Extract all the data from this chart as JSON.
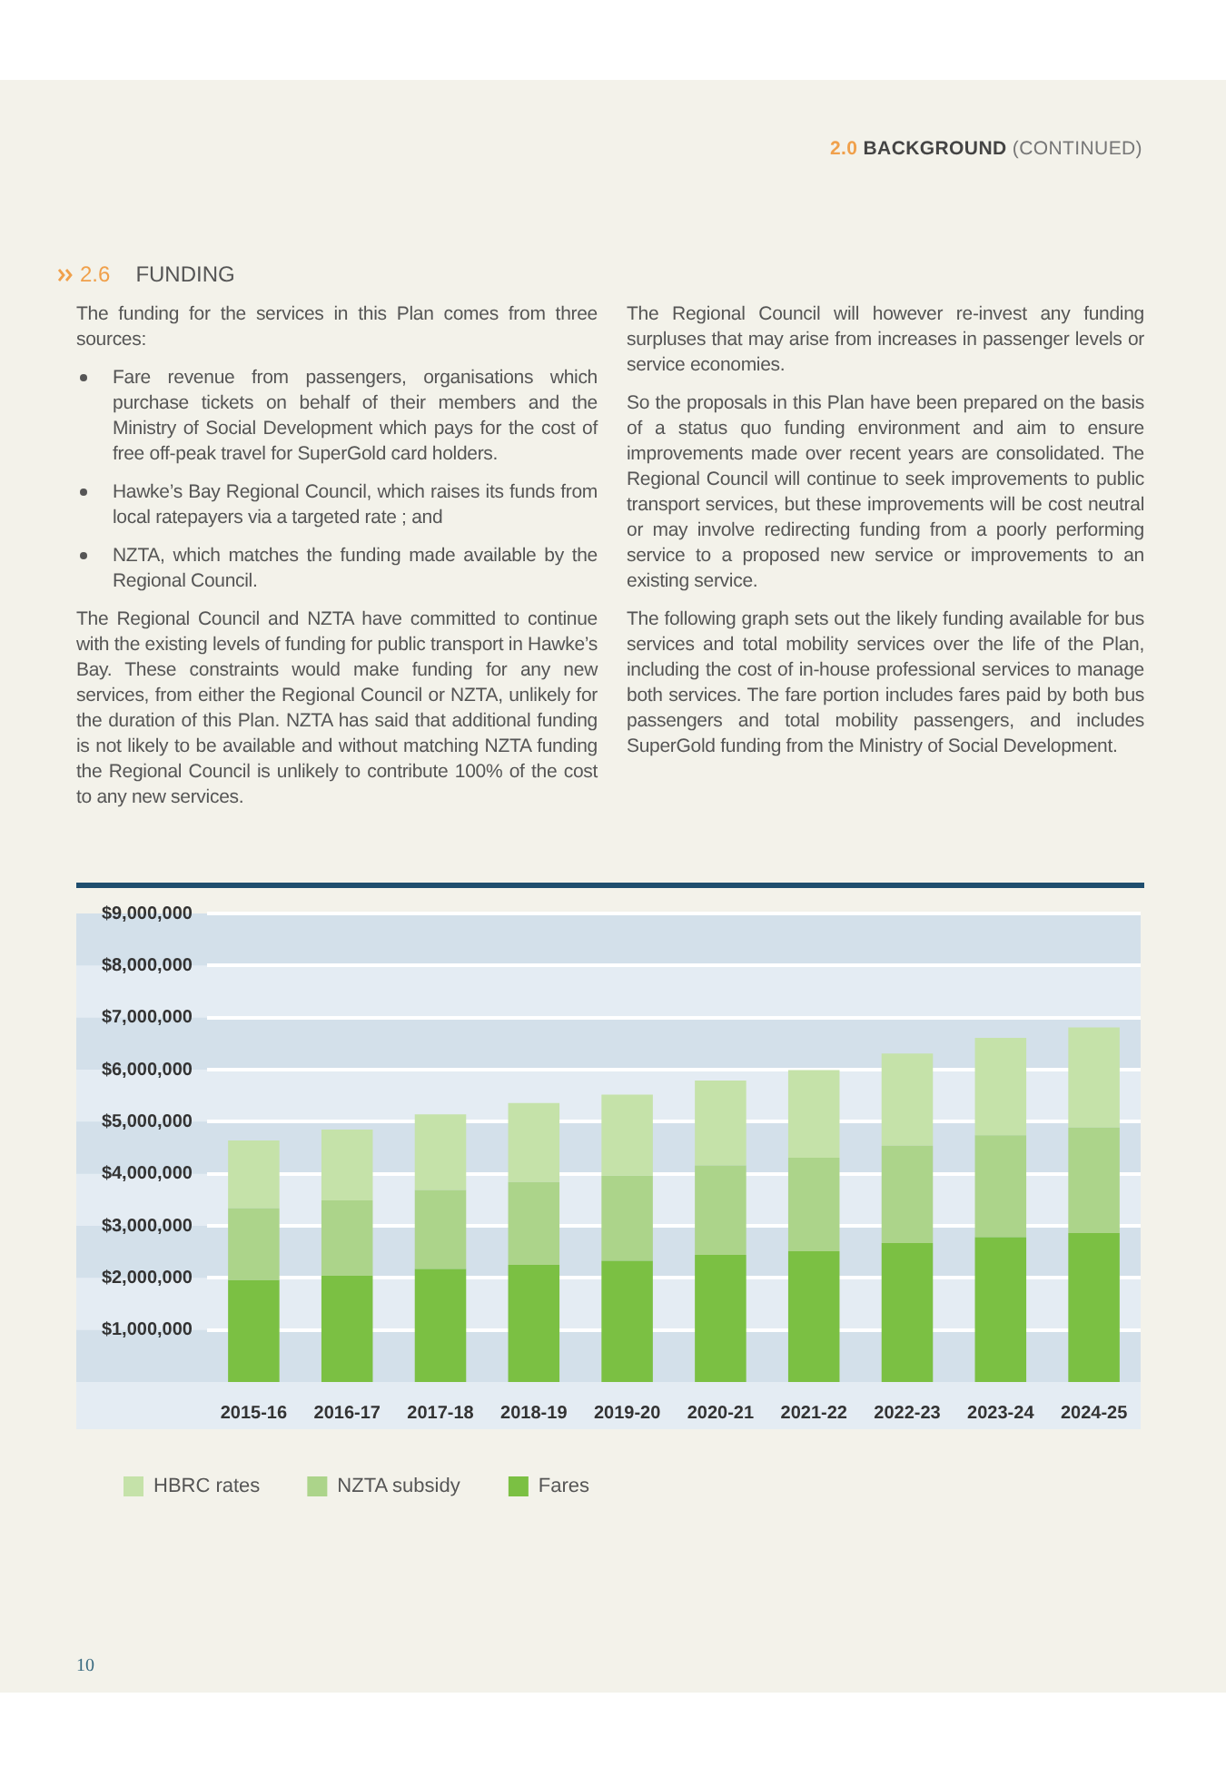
{
  "chart_data": {
    "type": "bar",
    "stacked": true,
    "title": "2.6 FUNDING",
    "categories": [
      "2015-16",
      "2016-17",
      "2017-18",
      "2018-19",
      "2019-20",
      "2020-21",
      "2021-22",
      "2022-23",
      "2023-24",
      "2024-25"
    ],
    "series": [
      {
        "name": "Fares",
        "color": "#7bc043",
        "values": [
          1960000,
          2040000,
          2170000,
          2250000,
          2330000,
          2440000,
          2510000,
          2670000,
          2780000,
          2860000
        ]
      },
      {
        "name": "NZTA subsidy",
        "color": "#acd48a",
        "values": [
          1380000,
          1450000,
          1520000,
          1590000,
          1640000,
          1720000,
          1800000,
          1870000,
          1960000,
          2030000
        ]
      },
      {
        "name": "HBRC rates",
        "color": "#c5e2a9",
        "values": [
          1300000,
          1360000,
          1450000,
          1520000,
          1550000,
          1630000,
          1680000,
          1770000,
          1870000,
          1920000
        ]
      }
    ],
    "ylim": [
      0,
      9000000
    ],
    "yticks": [
      {
        "value": 1000000,
        "label": "$1,000,000"
      },
      {
        "value": 2000000,
        "label": "$2,000,000"
      },
      {
        "value": 3000000,
        "label": "$3,000,000"
      },
      {
        "value": 4000000,
        "label": "$4,000,000"
      },
      {
        "value": 5000000,
        "label": "$5,000,000"
      },
      {
        "value": 6000000,
        "label": "$6,000,000"
      },
      {
        "value": 7000000,
        "label": "$7,000,000"
      },
      {
        "value": 8000000,
        "label": "$8,000,000"
      },
      {
        "value": 9000000,
        "label": "$9,000,000"
      }
    ],
    "grid": "y",
    "legend": "bottom left",
    "annotations": [
      "2.0 BACKGROUND (CONTINUED)",
      "The funding for the services in this Plan comes from three sources:",
      "Fare revenue from passengers, organisations which purchase tickets on behalf of their members and the Ministry of Social Development which pays for the cost of free off-peak travel for SuperGold card holders.",
      "Hawke’s Bay Regional Council, which raises its funds from local ratepayers via a targeted rate ; and",
      "NZTA, which matches the funding made available by the Regional Council.",
      "The Regional Council and NZTA have committed to continue with the existing levels of funding for public transport in Hawke’s Bay. These constraints would make funding for any new services, from either the Regional Council or NZTA, unlikely for the duration of this Plan.  NZTA has said that additional funding is not likely to be available and without matching NZTA funding the Regional Council is unlikely to contribute 100% of the cost to any new services.",
      "The Regional Council will however re-invest any funding surpluses that may arise from increases in passenger levels or service economies.",
      "So the proposals in this Plan have been prepared on the basis of a status quo funding environment and aim to ensure improvements made over recent years are consolidated.  The Regional Council will continue to seek improvements to public transport services, but these improvements will be cost neutral or may involve redirecting funding from a poorly performing service to a proposed new service or improvements to an existing service.",
      "The following graph sets out the likely funding available for bus services and total mobility services over the life of the Plan, including the cost of in-house professional services to manage both services. The fare portion includes fares paid by both bus passengers and total mobility passengers, and includes SuperGold funding from the Ministry of Social Development.",
      "10"
    ]
  }
}
